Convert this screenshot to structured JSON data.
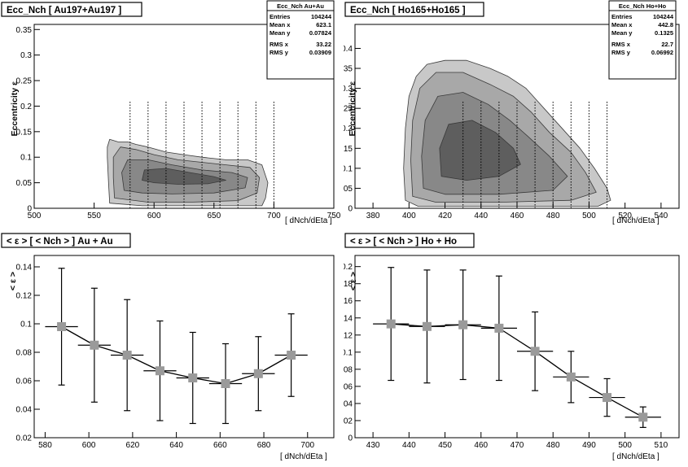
{
  "canvas": {
    "background": "#ffffff",
    "frame_color": "#000000",
    "marker_color": "#9a9a9a"
  },
  "chart_data": [
    {
      "type": "heatmap",
      "title": "Ecc_Nch   [ Au197+Au197 ]",
      "xlabel": "[ dNch/dEta ]",
      "ylabel": "Eccentricity  ε",
      "xlim": [
        500,
        750
      ],
      "ylim": [
        0,
        0.36
      ],
      "x_ticks": [
        "500",
        "550",
        "600",
        "650",
        "700",
        "750"
      ],
      "y_ticks": [
        "0",
        "0.05",
        "0.1",
        "0.15",
        "0.2",
        "0.25",
        "0.3",
        "0.35"
      ],
      "bin_edges": [
        580,
        595,
        610,
        625,
        640,
        655,
        670,
        685,
        700
      ],
      "stats": {
        "name": "Ecc_Nch Au+Au",
        "rows": [
          {
            "label": "Entries",
            "value": "104244"
          },
          {
            "label": "Mean x",
            "value": "623.1"
          },
          {
            "label": "Mean y",
            "value": "0.07824"
          },
          {
            "label": "RMS x",
            "value": "33.22"
          },
          {
            "label": "RMS y",
            "value": "0.03909"
          }
        ]
      },
      "contours": [
        {
          "level": 1,
          "color": "#c8c8c8",
          "points": [
            [
              563,
              0.01
            ],
            [
              562,
              0.05
            ],
            [
              561,
              0.1
            ],
            [
              561,
              0.12
            ],
            [
              563,
              0.135
            ],
            [
              570,
              0.13
            ],
            [
              578,
              0.13
            ],
            [
              585,
              0.125
            ],
            [
              595,
              0.12
            ],
            [
              610,
              0.11
            ],
            [
              625,
              0.105
            ],
            [
              640,
              0.1
            ],
            [
              660,
              0.095
            ],
            [
              678,
              0.095
            ],
            [
              690,
              0.085
            ],
            [
              695,
              0.05
            ],
            [
              693,
              0.02
            ],
            [
              690,
              0.005
            ],
            [
              660,
              0.005
            ],
            [
              620,
              0.005
            ],
            [
              590,
              0.005
            ]
          ]
        },
        {
          "level": 2,
          "color": "#a8a8a8",
          "points": [
            [
              567,
              0.02
            ],
            [
              566,
              0.06
            ],
            [
              566,
              0.1
            ],
            [
              572,
              0.12
            ],
            [
              585,
              0.115
            ],
            [
              600,
              0.105
            ],
            [
              620,
              0.095
            ],
            [
              640,
              0.09
            ],
            [
              660,
              0.085
            ],
            [
              680,
              0.08
            ],
            [
              688,
              0.06
            ],
            [
              686,
              0.03
            ],
            [
              670,
              0.015
            ],
            [
              630,
              0.012
            ],
            [
              595,
              0.012
            ]
          ]
        },
        {
          "level": 3,
          "color": "#888888",
          "points": [
            [
              575,
              0.035
            ],
            [
              573,
              0.07
            ],
            [
              578,
              0.095
            ],
            [
              595,
              0.095
            ],
            [
              615,
              0.085
            ],
            [
              640,
              0.075
            ],
            [
              665,
              0.07
            ],
            [
              678,
              0.06
            ],
            [
              676,
              0.04
            ],
            [
              650,
              0.03
            ],
            [
              615,
              0.028
            ],
            [
              590,
              0.03
            ]
          ]
        },
        {
          "level": 4,
          "color": "#5e5e5e",
          "points": [
            [
              590,
              0.055
            ],
            [
              592,
              0.075
            ],
            [
              610,
              0.078
            ],
            [
              630,
              0.07
            ],
            [
              650,
              0.062
            ],
            [
              660,
              0.055
            ],
            [
              645,
              0.048
            ],
            [
              620,
              0.047
            ],
            [
              600,
              0.05
            ]
          ]
        }
      ]
    },
    {
      "type": "heatmap",
      "title": "Ecc_Nch   [ Ho165+Ho165 ]",
      "xlabel": "[ dNch/dEta ]",
      "ylabel": "Eccentricity  ε",
      "xlim": [
        370,
        550
      ],
      "ylim": [
        0,
        0.46
      ],
      "x_ticks": [
        "380",
        "400",
        "420",
        "440",
        "460",
        "480",
        "500",
        "520",
        "540"
      ],
      "y_ticks": [
        "0",
        "0.05",
        "0.1",
        "0.15",
        "0.2",
        "0.25",
        "0.3",
        "0.35",
        "0.4"
      ],
      "bin_edges": [
        430,
        440,
        450,
        460,
        470,
        480,
        490,
        500,
        510
      ],
      "stats": {
        "name": "Ecc_Nch Ho+Ho",
        "rows": [
          {
            "label": "Entries",
            "value": "104244"
          },
          {
            "label": "Mean x",
            "value": "442.8"
          },
          {
            "label": "Mean y",
            "value": "0.1325"
          },
          {
            "label": "RMS x",
            "value": "22.7"
          },
          {
            "label": "RMS y",
            "value": "0.06992"
          }
        ]
      },
      "contours": [
        {
          "level": 1,
          "color": "#c8c8c8",
          "points": [
            [
              398,
              0.02
            ],
            [
              397,
              0.1
            ],
            [
              398,
              0.2
            ],
            [
              400,
              0.28
            ],
            [
              404,
              0.33
            ],
            [
              410,
              0.36
            ],
            [
              420,
              0.37
            ],
            [
              432,
              0.37
            ],
            [
              445,
              0.35
            ],
            [
              455,
              0.33
            ],
            [
              465,
              0.3
            ],
            [
              475,
              0.25
            ],
            [
              485,
              0.2
            ],
            [
              495,
              0.15
            ],
            [
              503,
              0.1
            ],
            [
              510,
              0.05
            ],
            [
              512,
              0.02
            ],
            [
              505,
              0.005
            ],
            [
              470,
              0.005
            ],
            [
              430,
              0.005
            ],
            [
              405,
              0.005
            ]
          ]
        },
        {
          "level": 2,
          "color": "#a8a8a8",
          "points": [
            [
              402,
              0.03
            ],
            [
              401,
              0.12
            ],
            [
              402,
              0.22
            ],
            [
              406,
              0.3
            ],
            [
              415,
              0.34
            ],
            [
              430,
              0.34
            ],
            [
              445,
              0.31
            ],
            [
              458,
              0.28
            ],
            [
              468,
              0.24
            ],
            [
              478,
              0.19
            ],
            [
              490,
              0.14
            ],
            [
              498,
              0.09
            ],
            [
              504,
              0.04
            ],
            [
              490,
              0.02
            ],
            [
              450,
              0.015
            ],
            [
              415,
              0.015
            ]
          ]
        },
        {
          "level": 3,
          "color": "#888888",
          "points": [
            [
              408,
              0.05
            ],
            [
              407,
              0.13
            ],
            [
              409,
              0.22
            ],
            [
              416,
              0.28
            ],
            [
              430,
              0.29
            ],
            [
              444,
              0.26
            ],
            [
              456,
              0.22
            ],
            [
              466,
              0.18
            ],
            [
              478,
              0.13
            ],
            [
              488,
              0.08
            ],
            [
              480,
              0.045
            ],
            [
              450,
              0.035
            ],
            [
              420,
              0.035
            ]
          ]
        },
        {
          "level": 4,
          "color": "#5e5e5e",
          "points": [
            [
              418,
              0.08
            ],
            [
              417,
              0.15
            ],
            [
              422,
              0.21
            ],
            [
              435,
              0.22
            ],
            [
              448,
              0.19
            ],
            [
              458,
              0.15
            ],
            [
              462,
              0.11
            ],
            [
              450,
              0.08
            ],
            [
              432,
              0.07
            ]
          ]
        }
      ]
    },
    {
      "type": "scatter",
      "title": "< ε > [ < Nch > ]   Au + Au",
      "xlabel": "[ dNch/dEta ]",
      "ylabel": "< ε >",
      "xlim": [
        575,
        712
      ],
      "ylim": [
        0.02,
        0.148
      ],
      "x_ticks": [
        "580",
        "600",
        "620",
        "640",
        "660",
        "680",
        "700"
      ],
      "y_ticks": [
        "0.02",
        "0.04",
        "0.06",
        "0.08",
        "0.1",
        "0.12",
        "0.14"
      ],
      "points": [
        {
          "x": 587.5,
          "y": 0.098,
          "xerr": 7.5,
          "yerr": 0.041
        },
        {
          "x": 602.5,
          "y": 0.085,
          "xerr": 7.5,
          "yerr": 0.04
        },
        {
          "x": 617.5,
          "y": 0.078,
          "xerr": 7.5,
          "yerr": 0.039
        },
        {
          "x": 632.5,
          "y": 0.067,
          "xerr": 7.5,
          "yerr": 0.035
        },
        {
          "x": 647.5,
          "y": 0.062,
          "xerr": 7.5,
          "yerr": 0.032
        },
        {
          "x": 662.5,
          "y": 0.058,
          "xerr": 7.5,
          "yerr": 0.028
        },
        {
          "x": 677.5,
          "y": 0.065,
          "xerr": 7.5,
          "yerr": 0.026
        },
        {
          "x": 692.5,
          "y": 0.078,
          "xerr": 7.5,
          "yerr": 0.029
        }
      ]
    },
    {
      "type": "scatter",
      "title": "< ε > [ < Nch > ]   Ho + Ho",
      "xlabel": "[ dNch/dEta ]",
      "ylabel": "< ε >",
      "xlim": [
        425,
        515
      ],
      "ylim": [
        0,
        0.213
      ],
      "x_ticks": [
        "430",
        "440",
        "450",
        "460",
        "470",
        "480",
        "490",
        "500",
        "510"
      ],
      "y_ticks": [
        "0",
        "0.02",
        "0.04",
        "0.06",
        "0.08",
        "0.1",
        "0.12",
        "0.14",
        "0.16",
        "0.18",
        "0.2"
      ],
      "points": [
        {
          "x": 435,
          "y": 0.133,
          "xerr": 5,
          "yerr": 0.066
        },
        {
          "x": 445,
          "y": 0.13,
          "xerr": 5,
          "yerr": 0.066
        },
        {
          "x": 455,
          "y": 0.132,
          "xerr": 5,
          "yerr": 0.064
        },
        {
          "x": 465,
          "y": 0.128,
          "xerr": 5,
          "yerr": 0.061
        },
        {
          "x": 475,
          "y": 0.101,
          "xerr": 5,
          "yerr": 0.046
        },
        {
          "x": 485,
          "y": 0.071,
          "xerr": 5,
          "yerr": 0.03
        },
        {
          "x": 495,
          "y": 0.047,
          "xerr": 5,
          "yerr": 0.022
        },
        {
          "x": 505,
          "y": 0.024,
          "xerr": 5,
          "yerr": 0.012
        }
      ]
    }
  ]
}
